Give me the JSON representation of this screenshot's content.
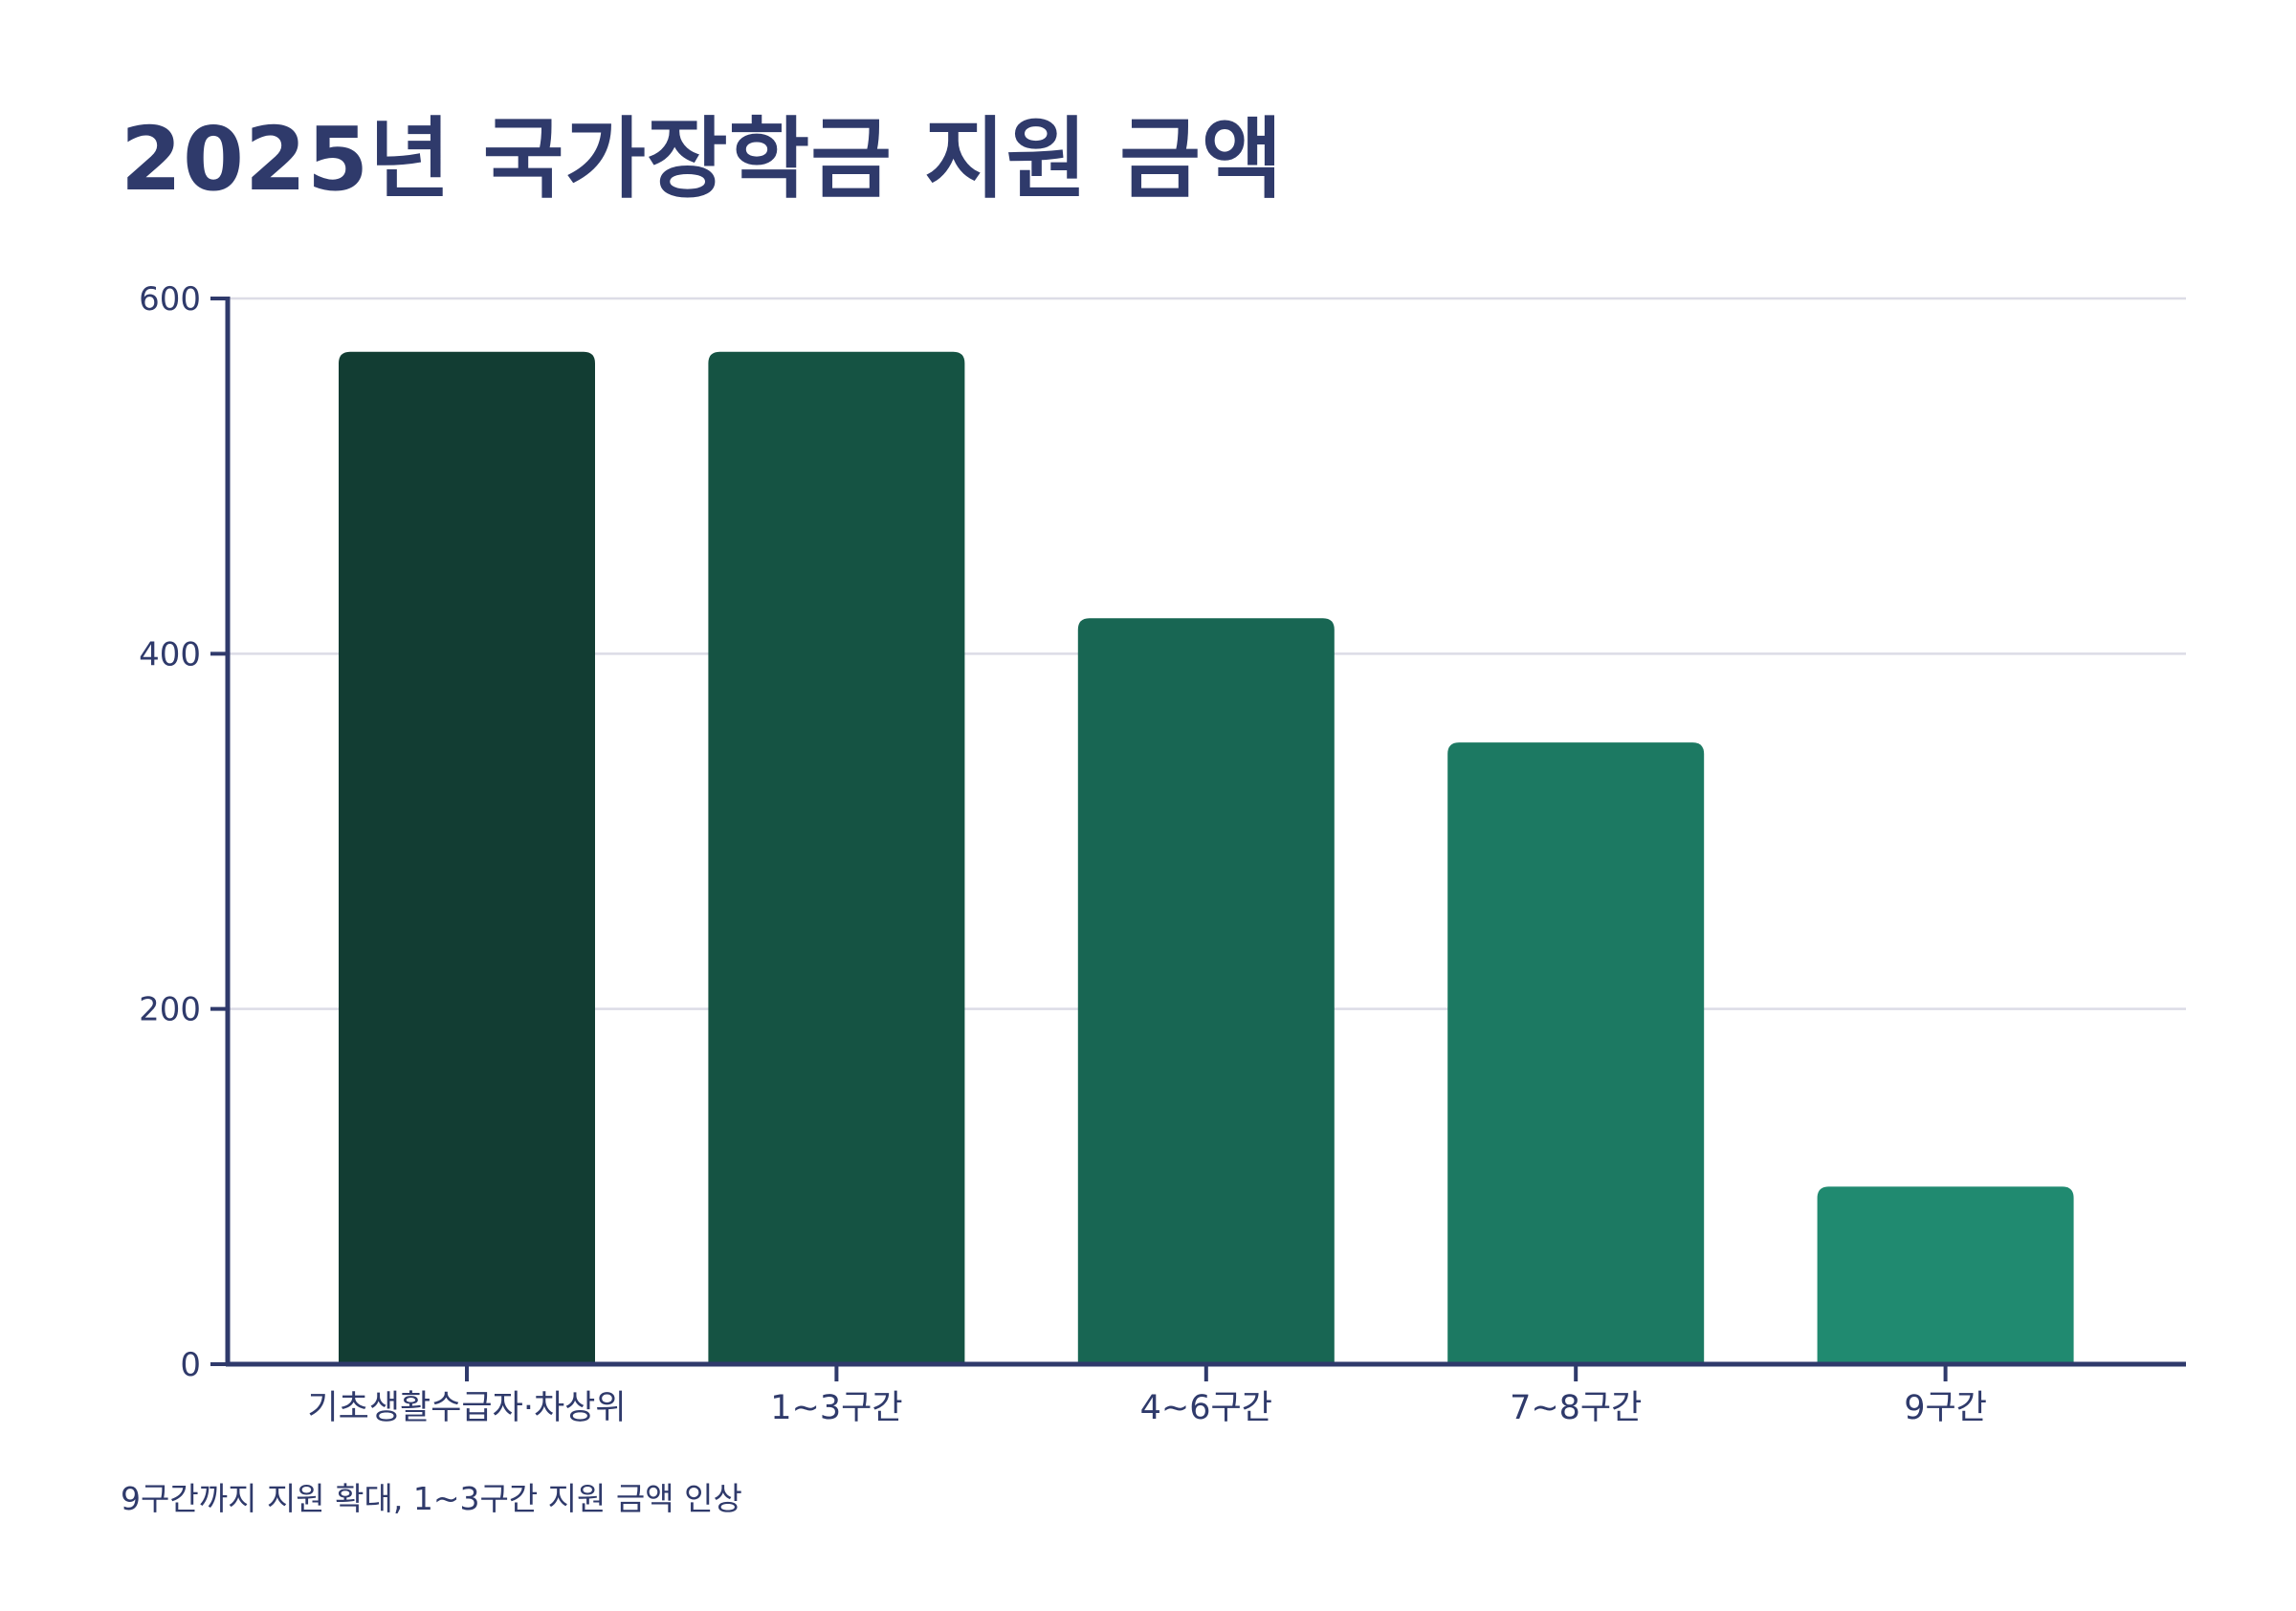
{
  "title": "2025년 국가장학금 지원 금액",
  "note": "9구간까지 지원 확대, 1~3구간 지원 금액 인상",
  "colors": {
    "text": "#2f3a6b",
    "axis": "#2f3a6b",
    "grid": "#dcdce6",
    "bars": [
      "#123d33",
      "#155343",
      "#186653",
      "#1c7962",
      "#208a70"
    ]
  },
  "chart_data": {
    "type": "bar",
    "categories": [
      "기초생활수급자·차상위",
      "1~3구간",
      "4~6구간",
      "7~8구간",
      "9구간"
    ],
    "values": [
      570,
      570,
      420,
      350,
      100
    ],
    "ylim": [
      0,
      600
    ],
    "yticks": [
      0,
      200,
      400,
      600
    ],
    "grid": true,
    "xlabel": "",
    "ylabel": ""
  }
}
